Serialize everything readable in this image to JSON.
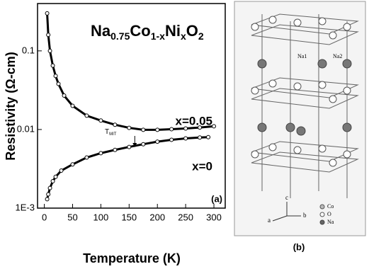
{
  "chart_data": {
    "type": "scatter",
    "title": {
      "parts": [
        "Na",
        "0.75",
        "Co",
        "1-x",
        "Ni",
        "x",
        "O",
        "2"
      ]
    },
    "xlabel": "Temperature (K)",
    "ylabel": "Resistivity (Ω-cm)",
    "panel_labels": [
      "(a)",
      "(b)"
    ],
    "annotation": {
      "parts": [
        "T",
        "MIT"
      ],
      "x": 160
    },
    "log_y": true,
    "xlim": [
      -12,
      320
    ],
    "ylim": [
      0.001,
      0.4
    ],
    "xticks": [
      0,
      50,
      100,
      150,
      200,
      250,
      300
    ],
    "yticks": [
      0.1,
      0.01,
      {
        "value": 0.001,
        "label": "1E-3"
      }
    ],
    "series": [
      {
        "name": "x=0.05",
        "color": "#000000",
        "x": [
          5,
          7,
          10,
          15,
          20,
          25,
          35,
          50,
          75,
          100,
          125,
          150,
          175,
          200,
          225,
          250,
          275,
          300
        ],
        "values": [
          0.3,
          0.16,
          0.1,
          0.065,
          0.048,
          0.038,
          0.027,
          0.02,
          0.015,
          0.013,
          0.0115,
          0.0105,
          0.0099,
          0.0099,
          0.0101,
          0.0103,
          0.0106,
          0.011
        ]
      },
      {
        "name": "x=0",
        "color": "#000000",
        "x": [
          5,
          7,
          10,
          15,
          20,
          30,
          50,
          75,
          100,
          125,
          150,
          175,
          200,
          225,
          250,
          275,
          290
        ],
        "values": [
          0.0013,
          0.0015,
          0.0018,
          0.0022,
          0.0025,
          0.003,
          0.0036,
          0.0044,
          0.005,
          0.0055,
          0.006,
          0.0065,
          0.007,
          0.0074,
          0.0077,
          0.0079,
          0.008
        ]
      }
    ]
  },
  "structure": {
    "labels": [
      "Na1",
      "Na2",
      "c",
      "a",
      "b",
      "Co",
      "O",
      "Na"
    ]
  }
}
